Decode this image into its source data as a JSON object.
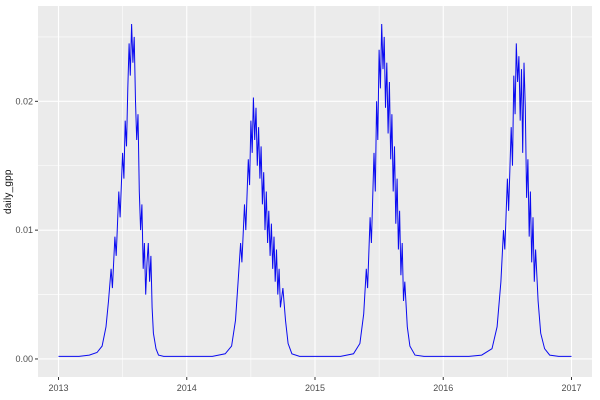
{
  "chart_data": {
    "type": "line",
    "title": "",
    "xlabel": "",
    "ylabel": "daily_gpp",
    "legend": "none",
    "grid": true,
    "xlim": [
      2012.84,
      2017.16
    ],
    "ylim": [
      -0.0014,
      0.0274
    ],
    "x_ticks": {
      "major": [
        2013,
        2014,
        2015,
        2016,
        2017
      ],
      "labels": [
        "2013",
        "2014",
        "2015",
        "2016",
        "2017"
      ],
      "minor": [
        2013.5,
        2014.5,
        2015.5,
        2016.5
      ]
    },
    "y_ticks": {
      "major": [
        0,
        0.01,
        0.02
      ],
      "labels": [
        "0.00",
        "0.01",
        "0.02"
      ],
      "minor": [
        0.005,
        0.015,
        0.025
      ]
    },
    "style": {
      "line_color": "#0A0AF0",
      "panel_bg": "#EBEBEB",
      "grid_color": "#FFFFFF",
      "plot_bg": "#FFFFFF",
      "tick_color": "#333333",
      "tick_label_color": "#4D4D4D",
      "axis_title_color": "#111111"
    },
    "series": [
      {
        "name": "daily_gpp",
        "points": [
          [
            2013.0,
            0.0002
          ],
          [
            2013.08,
            0.0002
          ],
          [
            2013.16,
            0.0002
          ],
          [
            2013.24,
            0.0003
          ],
          [
            2013.3,
            0.0005
          ],
          [
            2013.34,
            0.001
          ],
          [
            2013.37,
            0.0025
          ],
          [
            2013.39,
            0.0045
          ],
          [
            2013.41,
            0.007
          ],
          [
            2013.42,
            0.0055
          ],
          [
            2013.44,
            0.0095
          ],
          [
            2013.45,
            0.008
          ],
          [
            2013.47,
            0.013
          ],
          [
            2013.48,
            0.011
          ],
          [
            2013.5,
            0.016
          ],
          [
            2013.51,
            0.014
          ],
          [
            2013.52,
            0.0185
          ],
          [
            2013.53,
            0.0165
          ],
          [
            2013.54,
            0.021
          ],
          [
            2013.55,
            0.0245
          ],
          [
            2013.56,
            0.022
          ],
          [
            2013.57,
            0.026
          ],
          [
            2013.58,
            0.023
          ],
          [
            2013.59,
            0.025
          ],
          [
            2013.6,
            0.02
          ],
          [
            2013.61,
            0.017
          ],
          [
            2013.62,
            0.019
          ],
          [
            2013.63,
            0.013
          ],
          [
            2013.64,
            0.01
          ],
          [
            2013.65,
            0.012
          ],
          [
            2013.66,
            0.007
          ],
          [
            2013.67,
            0.009
          ],
          [
            2013.68,
            0.005
          ],
          [
            2013.69,
            0.0075
          ],
          [
            2013.7,
            0.009
          ],
          [
            2013.71,
            0.006
          ],
          [
            2013.72,
            0.008
          ],
          [
            2013.73,
            0.004
          ],
          [
            2013.74,
            0.002
          ],
          [
            2013.76,
            0.0008
          ],
          [
            2013.78,
            0.0003
          ],
          [
            2013.82,
            0.0002
          ],
          [
            2013.9,
            0.0002
          ],
          [
            2014.0,
            0.0002
          ],
          [
            2014.1,
            0.0002
          ],
          [
            2014.2,
            0.0002
          ],
          [
            2014.3,
            0.0004
          ],
          [
            2014.35,
            0.001
          ],
          [
            2014.38,
            0.003
          ],
          [
            2014.4,
            0.006
          ],
          [
            2014.42,
            0.009
          ],
          [
            2014.43,
            0.0075
          ],
          [
            2014.45,
            0.012
          ],
          [
            2014.46,
            0.01
          ],
          [
            2014.48,
            0.0155
          ],
          [
            2014.49,
            0.0135
          ],
          [
            2014.5,
            0.0185
          ],
          [
            2014.51,
            0.016
          ],
          [
            2014.52,
            0.0203
          ],
          [
            2014.53,
            0.017
          ],
          [
            2014.54,
            0.0195
          ],
          [
            2014.55,
            0.015
          ],
          [
            2014.56,
            0.018
          ],
          [
            2014.57,
            0.014
          ],
          [
            2014.58,
            0.0165
          ],
          [
            2014.59,
            0.012
          ],
          [
            2014.6,
            0.0145
          ],
          [
            2014.61,
            0.01
          ],
          [
            2014.62,
            0.013
          ],
          [
            2014.63,
            0.009
          ],
          [
            2014.64,
            0.0115
          ],
          [
            2014.65,
            0.008
          ],
          [
            2014.66,
            0.0105
          ],
          [
            2014.67,
            0.007
          ],
          [
            2014.68,
            0.0095
          ],
          [
            2014.69,
            0.006
          ],
          [
            2014.7,
            0.0085
          ],
          [
            2014.71,
            0.005
          ],
          [
            2014.72,
            0.007
          ],
          [
            2014.73,
            0.004
          ],
          [
            2014.75,
            0.0055
          ],
          [
            2014.77,
            0.003
          ],
          [
            2014.79,
            0.0012
          ],
          [
            2014.82,
            0.0004
          ],
          [
            2014.88,
            0.0002
          ],
          [
            2015.0,
            0.0002
          ],
          [
            2015.1,
            0.0002
          ],
          [
            2015.2,
            0.0002
          ],
          [
            2015.3,
            0.0004
          ],
          [
            2015.35,
            0.0012
          ],
          [
            2015.38,
            0.0035
          ],
          [
            2015.4,
            0.007
          ],
          [
            2015.41,
            0.0055
          ],
          [
            2015.43,
            0.011
          ],
          [
            2015.44,
            0.009
          ],
          [
            2015.46,
            0.016
          ],
          [
            2015.47,
            0.013
          ],
          [
            2015.48,
            0.02
          ],
          [
            2015.49,
            0.017
          ],
          [
            2015.5,
            0.024
          ],
          [
            2015.51,
            0.021
          ],
          [
            2015.52,
            0.026
          ],
          [
            2015.53,
            0.0225
          ],
          [
            2015.54,
            0.025
          ],
          [
            2015.55,
            0.0195
          ],
          [
            2015.56,
            0.023
          ],
          [
            2015.57,
            0.0175
          ],
          [
            2015.58,
            0.0215
          ],
          [
            2015.59,
            0.0155
          ],
          [
            2015.6,
            0.019
          ],
          [
            2015.61,
            0.013
          ],
          [
            2015.62,
            0.0165
          ],
          [
            2015.63,
            0.0105
          ],
          [
            2015.64,
            0.014
          ],
          [
            2015.65,
            0.0085
          ],
          [
            2015.66,
            0.0115
          ],
          [
            2015.67,
            0.0065
          ],
          [
            2015.68,
            0.009
          ],
          [
            2015.69,
            0.0045
          ],
          [
            2015.7,
            0.006
          ],
          [
            2015.72,
            0.0025
          ],
          [
            2015.74,
            0.001
          ],
          [
            2015.78,
            0.0003
          ],
          [
            2015.85,
            0.0002
          ],
          [
            2016.0,
            0.0002
          ],
          [
            2016.1,
            0.0002
          ],
          [
            2016.2,
            0.0002
          ],
          [
            2016.3,
            0.0003
          ],
          [
            2016.38,
            0.0008
          ],
          [
            2016.42,
            0.0025
          ],
          [
            2016.45,
            0.006
          ],
          [
            2016.47,
            0.01
          ],
          [
            2016.48,
            0.0085
          ],
          [
            2016.5,
            0.014
          ],
          [
            2016.51,
            0.0115
          ],
          [
            2016.53,
            0.018
          ],
          [
            2016.54,
            0.015
          ],
          [
            2016.55,
            0.022
          ],
          [
            2016.56,
            0.019
          ],
          [
            2016.57,
            0.0245
          ],
          [
            2016.58,
            0.0215
          ],
          [
            2016.59,
            0.0235
          ],
          [
            2016.6,
            0.0185
          ],
          [
            2016.61,
            0.0225
          ],
          [
            2016.62,
            0.016
          ],
          [
            2016.63,
            0.023
          ],
          [
            2016.64,
            0.0195
          ],
          [
            2016.65,
            0.0125
          ],
          [
            2016.66,
            0.0155
          ],
          [
            2016.67,
            0.0095
          ],
          [
            2016.68,
            0.013
          ],
          [
            2016.69,
            0.0075
          ],
          [
            2016.7,
            0.011
          ],
          [
            2016.71,
            0.006
          ],
          [
            2016.72,
            0.0085
          ],
          [
            2016.74,
            0.0045
          ],
          [
            2016.76,
            0.002
          ],
          [
            2016.79,
            0.0008
          ],
          [
            2016.83,
            0.0003
          ],
          [
            2016.9,
            0.0002
          ],
          [
            2017.0,
            0.0002
          ]
        ]
      }
    ]
  }
}
